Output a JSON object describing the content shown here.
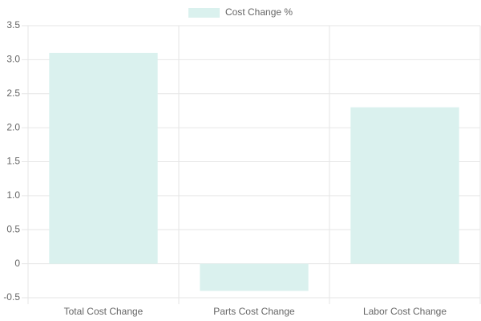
{
  "chart_data": {
    "type": "bar",
    "categories": [
      "Total Cost Change",
      "Parts Cost Change",
      "Labor Cost Change"
    ],
    "series": [
      {
        "name": "Cost Change %",
        "color": "#daf1ee",
        "values": [
          3.1,
          -0.4,
          2.3
        ]
      }
    ],
    "ylim": [
      -0.5,
      3.5
    ],
    "yticks": [
      -0.5,
      0,
      0.5,
      {
        "value": 1,
        "label": "1.0"
      },
      1.5,
      {
        "value": 2,
        "label": "2.0"
      },
      2.5,
      {
        "value": 3,
        "label": "3.0"
      },
      3.5
    ],
    "grid": true,
    "legend": "top"
  }
}
